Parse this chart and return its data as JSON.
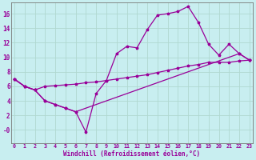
{
  "xlabel": "Windchill (Refroidissement éolien,°C)",
  "background_color": "#c8eef0",
  "line_color": "#990099",
  "grid_color": "#b0d8d0",
  "x_ticks": [
    0,
    1,
    2,
    3,
    4,
    5,
    6,
    7,
    8,
    9,
    10,
    11,
    12,
    13,
    14,
    15,
    16,
    17,
    18,
    19,
    20,
    21,
    22,
    23
  ],
  "xlim": [
    -0.3,
    23.3
  ],
  "ylim": [
    -1.8,
    17.5
  ],
  "line1_x": [
    0,
    1,
    2,
    3,
    4,
    5,
    6,
    7,
    8,
    9,
    10,
    11,
    12,
    13,
    14,
    15,
    16,
    17,
    18,
    19,
    20,
    21,
    22,
    23
  ],
  "line1_y": [
    7,
    6,
    5.5,
    4,
    3.5,
    3,
    2.5,
    -0.3,
    5,
    6.8,
    10.5,
    11.5,
    11.3,
    13.8,
    15.8,
    16.0,
    16.3,
    17.0,
    14.8,
    11.8,
    10.3,
    11.8,
    10.5,
    9.6
  ],
  "line2_x": [
    0,
    1,
    2,
    3,
    4,
    5,
    6,
    7,
    8,
    9,
    10,
    11,
    12,
    13,
    14,
    15,
    16,
    17,
    18,
    19,
    20,
    21,
    22,
    23
  ],
  "line2_y": [
    7,
    6,
    5.5,
    6.0,
    6.1,
    6.2,
    6.3,
    6.5,
    6.6,
    6.8,
    7.0,
    7.2,
    7.4,
    7.6,
    7.9,
    8.2,
    8.5,
    8.8,
    9.0,
    9.3,
    9.3,
    9.3,
    9.5,
    9.6
  ],
  "line3_x": [
    0,
    1,
    2,
    3,
    4,
    5,
    6,
    22,
    23
  ],
  "line3_y": [
    7,
    6,
    5.5,
    4,
    3.5,
    3,
    2.5,
    10.5,
    9.6
  ]
}
